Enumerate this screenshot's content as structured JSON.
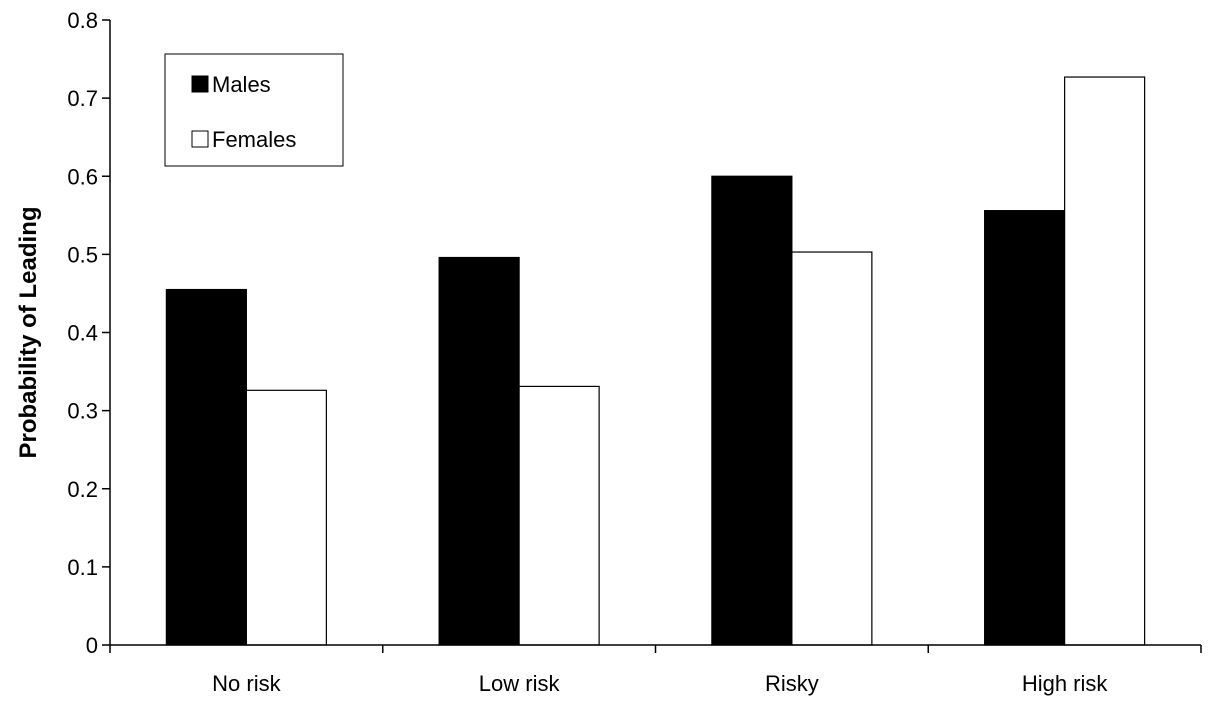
{
  "chart_data": {
    "type": "bar",
    "title": "",
    "xlabel": "",
    "ylabel": "Probability of Leading",
    "categories": [
      "No risk",
      "Low risk",
      "Risky",
      "High risk"
    ],
    "series": [
      {
        "name": "Males",
        "values": [
          0.455,
          0.496,
          0.6,
          0.556
        ],
        "color": "#000000"
      },
      {
        "name": "Females",
        "values": [
          0.326,
          0.331,
          0.503,
          0.727
        ],
        "color": "#ffffff"
      }
    ],
    "ylim": [
      0,
      0.8
    ],
    "yticks": [
      "0",
      "0.1",
      "0.2",
      "0.3",
      "0.4",
      "0.5",
      "0.6",
      "0.7",
      "0.8"
    ],
    "grid": false,
    "legend_position": "top-left"
  }
}
